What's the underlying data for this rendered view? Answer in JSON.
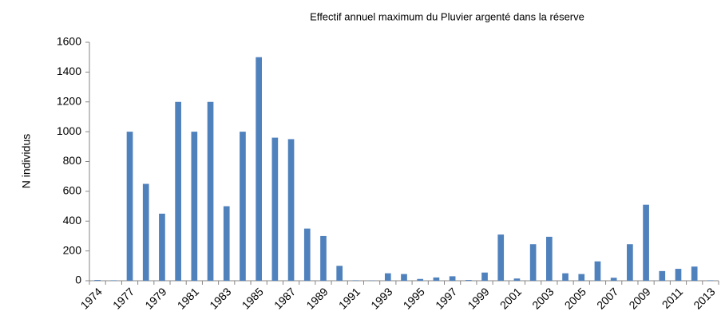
{
  "chart_data": {
    "type": "bar",
    "title": "Effectif annuel maximum du Pluvier argenté dans la réserve",
    "y_label": "N individus",
    "categories": [
      "1974",
      null,
      "1977",
      null,
      "1979",
      null,
      "1981",
      null,
      "1983",
      null,
      "1985",
      null,
      "1987",
      null,
      "1989",
      null,
      "1991",
      null,
      "1993",
      null,
      "1995",
      null,
      "1997",
      null,
      "1999",
      null,
      "2001",
      null,
      "2003",
      null,
      "2005",
      null,
      "2007",
      null,
      "2009",
      null,
      "2011",
      null,
      "2013"
    ],
    "values": [
      5,
      3,
      1000,
      650,
      450,
      1200,
      1000,
      1200,
      500,
      1000,
      1500,
      960,
      950,
      350,
      300,
      100,
      3,
      2,
      50,
      45,
      12,
      22,
      30,
      5,
      55,
      310,
      15,
      245,
      295,
      50,
      45,
      130,
      20,
      245,
      510,
      65,
      80,
      95,
      3
    ],
    "color": "#4f81bd",
    "ylim": [
      0,
      1600
    ],
    "yticks": [
      0,
      200,
      400,
      600,
      800,
      1000,
      1200,
      1400,
      1600
    ],
    "grid": false
  }
}
